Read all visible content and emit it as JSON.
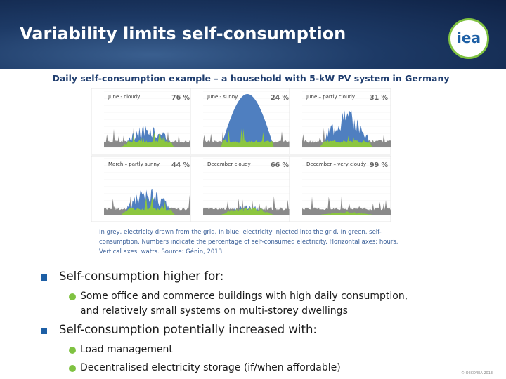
{
  "header": {
    "title": "Variability limits self-consumption",
    "logo": "iea"
  },
  "figure": {
    "title": "Daily self-consumption example – a household with 5-kW PV system in Germany",
    "panels": [
      {
        "label": "June - cloudy",
        "percent": "76 %"
      },
      {
        "label": "June - sunny",
        "percent": "24 %"
      },
      {
        "label": "June – partly cloudy",
        "percent": "31 %"
      },
      {
        "label": "March – partly sunny",
        "percent": "44 %"
      },
      {
        "label": "December cloudy",
        "percent": "66 %"
      },
      {
        "label": "December – very cloudy",
        "percent": "99 %"
      }
    ],
    "caption": [
      "In grey, electricity drawn from the grid. In blue, electricity injected into the grid. In green, self-",
      "consumption. Numbers indicate the percentage of self-consumed electricity. Horizontal axes: hours.",
      "Vertical axes: watts. Source: Génin, 2013."
    ]
  },
  "bullets": [
    {
      "text": "Self-consumption higher for:",
      "sub": [
        "Some office and commerce buildings with high daily consumption,",
        "and relatively small systems on multi-storey dwellings"
      ]
    },
    {
      "text": "Self-consumption potentially increased with:",
      "sub": [
        "Load management",
        "Decentralised electricity storage (if/when affordable)"
      ]
    }
  ],
  "copyright": "© OECD/IEA 2013"
}
